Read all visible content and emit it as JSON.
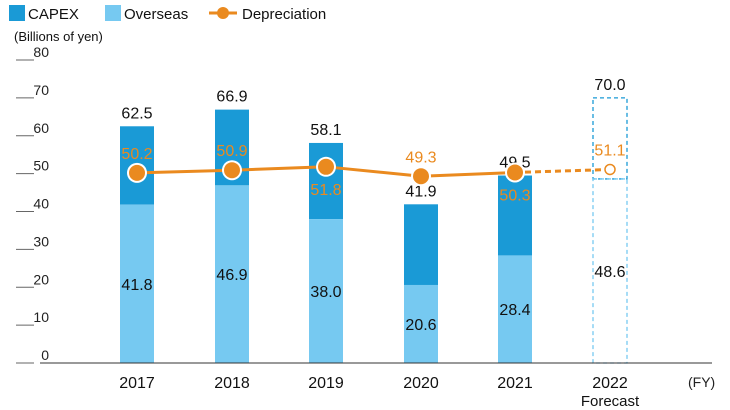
{
  "chart_data": {
    "type": "bar",
    "categories": [
      "2017",
      "2018",
      "2019",
      "2020",
      "2021",
      "2022"
    ],
    "forecast_label": "Forecast",
    "forecast_index": 5,
    "x_unit": "(FY)",
    "ylabel": "(Billions of yen)",
    "ylim": [
      0,
      80
    ],
    "yticks": [
      "0",
      "10",
      "20",
      "30",
      "40",
      "50",
      "60",
      "70",
      "80"
    ],
    "series": [
      {
        "name": "CAPEX",
        "kind": "bar-total",
        "color": "#1a9ad6",
        "values": [
          62.5,
          66.9,
          58.1,
          41.9,
          49.5,
          70.0
        ],
        "labels": [
          "62.5",
          "66.9",
          "58.1",
          "41.9",
          "49.5",
          "70.0"
        ]
      },
      {
        "name": "Overseas",
        "kind": "bar-portion",
        "color": "#76c9f1",
        "values": [
          41.8,
          46.9,
          38.0,
          20.6,
          28.4,
          48.6
        ],
        "labels": [
          "41.8",
          "46.9",
          "38.0",
          "20.6",
          "28.4",
          "48.6"
        ]
      },
      {
        "name": "Depreciation",
        "kind": "line",
        "color": "#ea8a1f",
        "values": [
          50.2,
          50.9,
          51.8,
          49.3,
          50.3,
          51.1
        ],
        "labels": [
          "50.2",
          "50.9",
          "51.8",
          "49.3",
          "50.3",
          "51.1"
        ]
      }
    ]
  }
}
